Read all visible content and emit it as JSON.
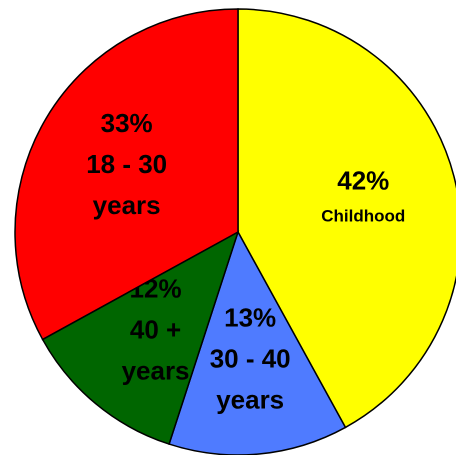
{
  "chart_data": {
    "type": "pie",
    "categories": [
      [
        "Childhood"
      ],
      [
        "30 - 40",
        "years"
      ],
      [
        "40 +",
        "years"
      ],
      [
        "18 - 30",
        "years"
      ]
    ],
    "values": [
      42,
      13,
      12,
      33
    ],
    "value_labels": [
      "42%",
      "13%",
      "12%",
      "33%"
    ],
    "colors": [
      "#ffff00",
      "#4f7bff",
      "#006600",
      "#ff0000"
    ]
  }
}
